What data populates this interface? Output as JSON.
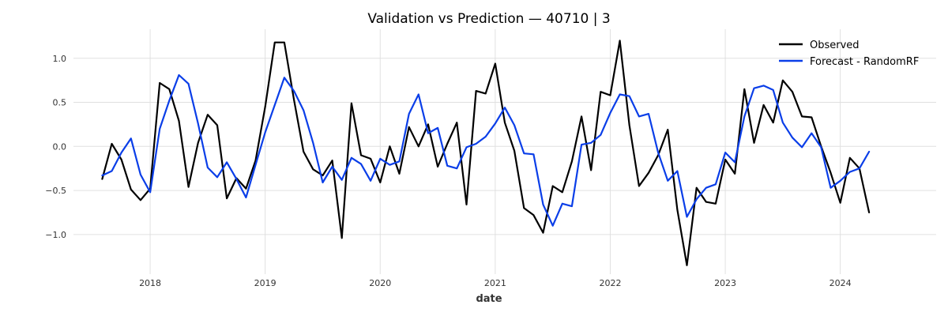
{
  "chart_data": {
    "type": "line",
    "title": "Validation vs Prediction — 40710 | 3",
    "xlabel": "date",
    "ylabel": "",
    "x_ticks": [
      "2018",
      "2019",
      "2020",
      "2021",
      "2022",
      "2023",
      "2024"
    ],
    "y_ticks": [
      1.0,
      0.5,
      0.0,
      -0.5,
      -1.0
    ],
    "y_tick_labels": [
      "1.0",
      "0.5",
      "0.0",
      "−0.5",
      "−1.0"
    ],
    "xlim": [
      "2017-05-01",
      "2024-11-01"
    ],
    "ylim": [
      -1.45,
      1.33
    ],
    "grid": true,
    "legend_position": "top-right",
    "x": [
      "2017-08",
      "2017-09",
      "2017-10",
      "2017-11",
      "2017-12",
      "2018-01",
      "2018-02",
      "2018-03",
      "2018-04",
      "2018-05",
      "2018-06",
      "2018-07",
      "2018-08",
      "2018-09",
      "2018-10",
      "2018-11",
      "2018-12",
      "2019-01",
      "2019-02",
      "2019-03",
      "2019-04",
      "2019-05",
      "2019-06",
      "2019-07",
      "2019-08",
      "2019-09",
      "2019-10",
      "2019-11",
      "2019-12",
      "2020-01",
      "2020-02",
      "2020-03",
      "2020-04",
      "2020-05",
      "2020-06",
      "2020-07",
      "2020-08",
      "2020-09",
      "2020-10",
      "2020-11",
      "2020-12",
      "2021-01",
      "2021-02",
      "2021-03",
      "2021-04",
      "2021-05",
      "2021-06",
      "2021-07",
      "2021-08",
      "2021-09",
      "2021-10",
      "2021-11",
      "2021-12",
      "2022-01",
      "2022-02",
      "2022-03",
      "2022-04",
      "2022-05",
      "2022-06",
      "2022-07",
      "2022-08",
      "2022-09",
      "2022-10",
      "2022-11",
      "2022-12",
      "2023-01",
      "2023-02",
      "2023-03",
      "2023-04",
      "2023-05",
      "2023-06",
      "2023-07",
      "2023-08",
      "2023-09",
      "2023-10",
      "2023-11",
      "2023-12",
      "2024-01",
      "2024-02",
      "2024-03",
      "2024-04"
    ],
    "series": [
      {
        "name": "Observed",
        "color": "#000000",
        "values": [
          -0.37,
          0.03,
          -0.15,
          -0.49,
          -0.61,
          -0.48,
          0.72,
          0.65,
          0.29,
          -0.46,
          0.04,
          0.36,
          0.24,
          -0.59,
          -0.36,
          -0.48,
          -0.16,
          0.45,
          1.18,
          1.18,
          0.53,
          -0.06,
          -0.26,
          -0.33,
          -0.16,
          -1.04,
          0.49,
          -0.1,
          -0.14,
          -0.41,
          0.0,
          -0.31,
          0.22,
          0.0,
          0.25,
          -0.23,
          0.03,
          0.27,
          -0.66,
          0.63,
          0.6,
          0.94,
          0.27,
          -0.05,
          -0.7,
          -0.78,
          -0.98,
          -0.45,
          -0.52,
          -0.17,
          0.34,
          -0.27,
          0.62,
          0.58,
          1.2,
          0.24,
          -0.45,
          -0.3,
          -0.1,
          0.19,
          -0.72,
          -1.35,
          -0.47,
          -0.63,
          -0.65,
          -0.15,
          -0.31,
          0.65,
          0.04,
          0.47,
          0.27,
          0.75,
          0.62,
          0.34,
          0.33,
          0.0,
          -0.3,
          -0.64,
          -0.13,
          -0.25,
          -0.75
        ]
      },
      {
        "name": "Forecast - RandomRF",
        "color": "#0a3ee8",
        "values": [
          -0.33,
          -0.28,
          -0.07,
          0.09,
          -0.32,
          -0.52,
          0.2,
          0.52,
          0.81,
          0.71,
          0.26,
          -0.24,
          -0.35,
          -0.18,
          -0.37,
          -0.58,
          -0.21,
          0.16,
          0.47,
          0.78,
          0.63,
          0.41,
          0.04,
          -0.41,
          -0.23,
          -0.38,
          -0.13,
          -0.2,
          -0.39,
          -0.14,
          -0.21,
          -0.17,
          0.37,
          0.59,
          0.15,
          0.21,
          -0.22,
          -0.25,
          -0.01,
          0.03,
          0.11,
          0.26,
          0.44,
          0.24,
          -0.08,
          -0.09,
          -0.66,
          -0.9,
          -0.65,
          -0.68,
          0.02,
          0.04,
          0.13,
          0.38,
          0.59,
          0.57,
          0.34,
          0.37,
          -0.07,
          -0.39,
          -0.28,
          -0.8,
          -0.6,
          -0.47,
          -0.43,
          -0.07,
          -0.18,
          0.34,
          0.66,
          0.69,
          0.64,
          0.27,
          0.1,
          -0.01,
          0.15,
          -0.01,
          -0.47,
          -0.39,
          -0.29,
          -0.25,
          -0.06
        ]
      }
    ]
  }
}
